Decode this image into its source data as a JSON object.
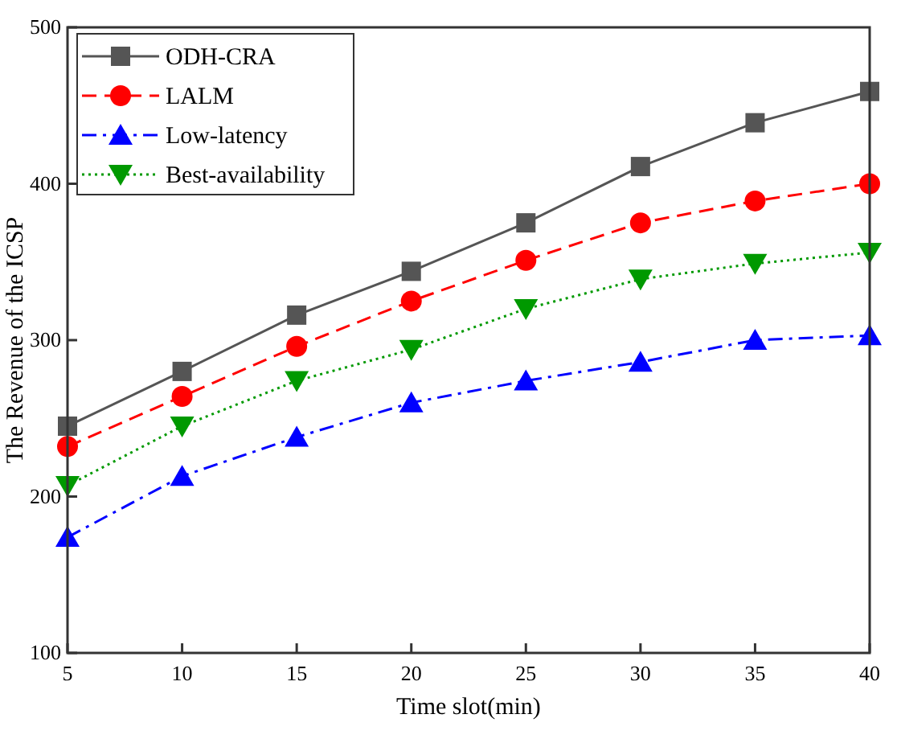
{
  "chart_data": {
    "type": "line",
    "xlabel": "Time slot(min)",
    "ylabel": "The Revenue of the ICSP",
    "x": [
      5,
      10,
      15,
      20,
      25,
      30,
      35,
      40
    ],
    "xlim": [
      5,
      40
    ],
    "xticks": [
      5,
      10,
      15,
      20,
      25,
      30,
      35,
      40
    ],
    "ylim": [
      100,
      500
    ],
    "yticks": [
      100,
      200,
      300,
      400,
      500
    ],
    "grid": false,
    "legend": "top left",
    "series": [
      {
        "name": "ODH-CRA",
        "color": "#555555",
        "marker": "square",
        "line_style": "solid",
        "values": [
          245,
          280,
          316,
          344,
          375,
          411,
          439,
          459
        ]
      },
      {
        "name": "LALM",
        "color": "#ff0000",
        "marker": "circle",
        "line_style": "dashed",
        "values": [
          232,
          264,
          296,
          325,
          351,
          375,
          389,
          400
        ]
      },
      {
        "name": "Low-latency",
        "color": "#0000ff",
        "marker": "triangle",
        "line_style": "dashdot",
        "values": [
          174,
          213,
          238,
          260,
          274,
          286,
          300,
          303
        ]
      },
      {
        "name": "Best-availability",
        "color": "#009900",
        "marker": "triangle-down",
        "line_style": "dotted",
        "values": [
          207,
          245,
          274,
          294,
          320,
          339,
          349,
          356
        ]
      }
    ]
  }
}
